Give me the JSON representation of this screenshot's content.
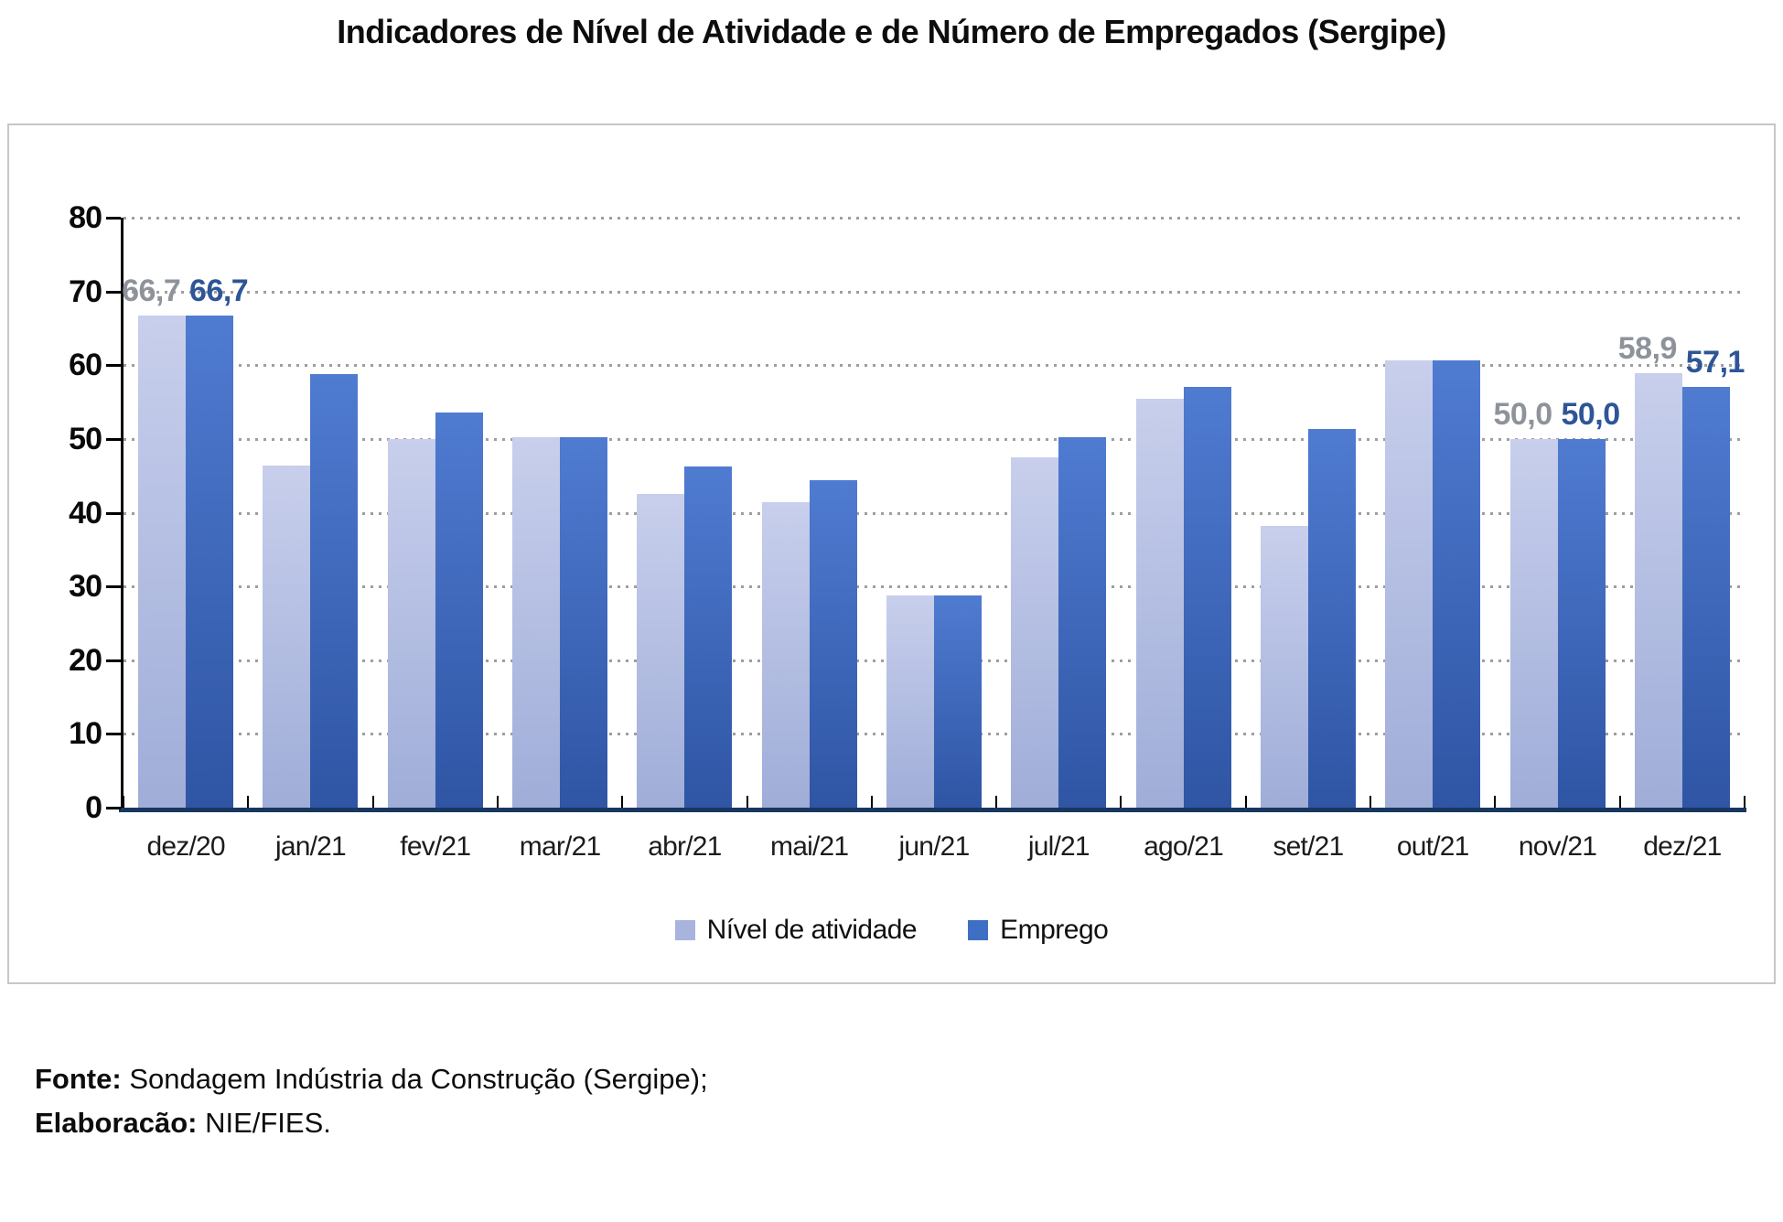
{
  "title": "Indicadores de Nível de Atividade e de Número de Empregados (Sergipe)",
  "footer": {
    "fonte_label": "Fonte:",
    "fonte_text": " Sondagem Indústria da Construção (Sergipe);",
    "elaboracao_label": "Elaboracão:",
    "elaboracao_text": " NIE/FIES."
  },
  "legend": {
    "items": [
      {
        "label": "Nível de atividade",
        "color": "#a9b4de"
      },
      {
        "label": "Emprego",
        "color": "#3f6ec5"
      }
    ]
  },
  "colors": {
    "light_bar_top": "#c8cfec",
    "light_bar_bottom": "#9fadd8",
    "dark_bar_top": "#4f7bd1",
    "dark_bar_bottom": "#2f55a4",
    "gray_label": "#8e939b",
    "blue_label": "#2e5597",
    "gridline": "#9e9e9e",
    "x_axis_line": "#17375e"
  },
  "chart_data": {
    "type": "bar",
    "title": "Indicadores de Nível de Atividade e de Número de Empregados (Sergipe)",
    "categories": [
      "dez/20",
      "jan/21",
      "fev/21",
      "mar/21",
      "abr/21",
      "mai/21",
      "jun/21",
      "jul/21",
      "ago/21",
      "set/21",
      "out/21",
      "nov/21",
      "dez/21"
    ],
    "series": [
      {
        "name": "Nível de atividade",
        "values": [
          66.7,
          46.4,
          50.0,
          50.2,
          42.6,
          41.4,
          28.8,
          47.5,
          55.4,
          38.2,
          60.7,
          50.0,
          58.9
        ],
        "value_labels": [
          "66,7",
          null,
          null,
          null,
          null,
          null,
          null,
          null,
          null,
          null,
          null,
          "50,0",
          "58,9"
        ]
      },
      {
        "name": "Emprego",
        "values": [
          66.7,
          58.8,
          53.6,
          50.2,
          46.3,
          44.4,
          28.8,
          50.2,
          57.1,
          51.3,
          60.7,
          50.0,
          57.1
        ],
        "value_labels": [
          "66,7",
          null,
          null,
          null,
          null,
          null,
          null,
          null,
          null,
          null,
          null,
          "50,0",
          "57,1"
        ]
      }
    ],
    "xlabel": "",
    "ylabel": "",
    "ylim": [
      0,
      80
    ],
    "yticks": [
      0,
      10,
      20,
      30,
      40,
      50,
      60,
      70,
      80
    ],
    "ytick_labels": [
      "0",
      "10",
      "20",
      "30",
      "40",
      "50",
      "60",
      "70",
      "80"
    ],
    "grid": "dotted horizontal",
    "legend_position": "bottom"
  }
}
